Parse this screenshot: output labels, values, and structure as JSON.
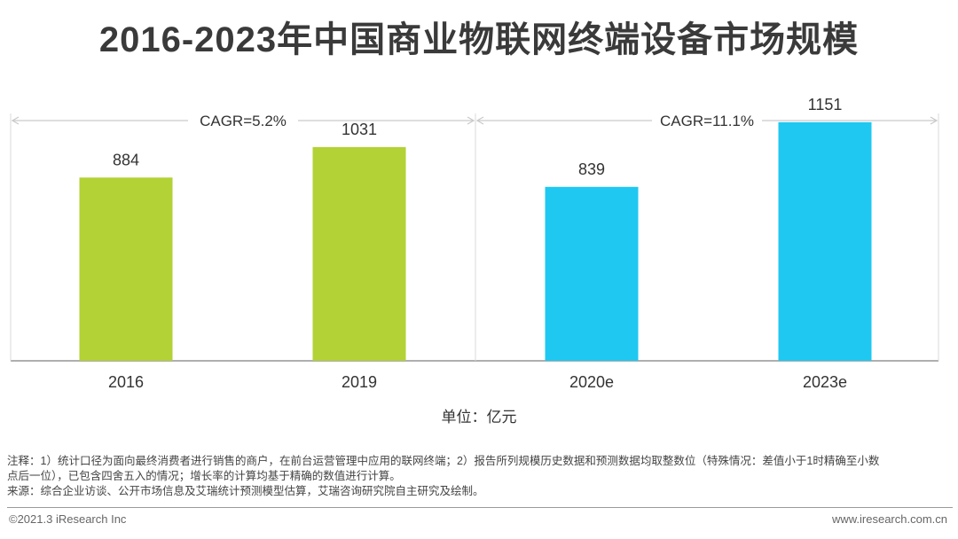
{
  "title": "2016-2023年中国商业物联网终端设备市场规模",
  "unit_label": "单位：亿元",
  "notes": [
    "注释：1）统计口径为面向最终消费者进行销售的商户，在前台运营管理中应用的联网终端；2）报告所列规模历史数据和预测数据均取整数位（特殊情况：差值小于1时精确至小数",
    "点后一位），已包含四舍五入的情况；增长率的计算均基于精确的数值进行计算。",
    "来源：综合企业访谈、公开市场信息及艾瑞统计预测模型估算，艾瑞咨询研究院自主研究及绘制。"
  ],
  "footer": {
    "copyright": "©2021.3 iResearch Inc",
    "website": "www.iresearch.com.cn"
  },
  "colors": {
    "historical": "#b2d235",
    "forecast": "#1fc8f0"
  },
  "chart_data": {
    "type": "bar",
    "categories": [
      "2016",
      "2019",
      "2020e",
      "2023e"
    ],
    "values": [
      884,
      1031,
      839,
      1151
    ],
    "ylim": [
      0,
      1270
    ],
    "cagr_annotations": [
      {
        "label": "CAGR=5.2%",
        "from": "2016",
        "to": "2019"
      },
      {
        "label": "CAGR=11.1%",
        "from": "2020e",
        "to": "2023e"
      }
    ]
  }
}
